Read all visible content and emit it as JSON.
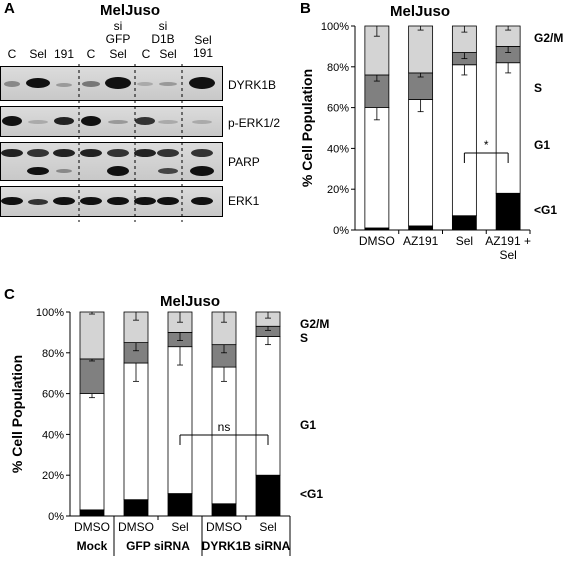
{
  "panels": {
    "A": {
      "letter": "A",
      "title": "MelJuso",
      "lane_labels": [
        "C",
        "Sel",
        "191",
        "C",
        "Sel",
        "C",
        "Sel"
      ],
      "group_labels": [
        {
          "line1": "si",
          "line2": "GFP"
        },
        {
          "line1": "si",
          "line2": "D1B"
        },
        {
          "line1": "Sel",
          "line2": "191"
        }
      ],
      "blot_labels": [
        "DYRK1B",
        "p-ERK1/2",
        "PARP",
        "ERK1"
      ]
    },
    "B": {
      "letter": "B"
    },
    "C": {
      "letter": "C"
    }
  },
  "chart_data": [
    {
      "type": "bar",
      "stacked": true,
      "title": "MelJuso",
      "ylabel": "% Cell Population",
      "ylim": [
        0,
        100
      ],
      "yticks": [
        "0%",
        "20%",
        "40%",
        "60%",
        "80%",
        "100%"
      ],
      "categories": [
        "DMSO",
        "AZ191",
        "Sel",
        "AZ191 + Sel"
      ],
      "series": [
        {
          "name": "<G1",
          "color": "#000000",
          "values": [
            1,
            2,
            7,
            18
          ],
          "errors": [
            0.5,
            1,
            4,
            7
          ]
        },
        {
          "name": "G1",
          "color": "#ffffff",
          "values": [
            59,
            62,
            74,
            64
          ],
          "errors": [
            6,
            6,
            5,
            5
          ]
        },
        {
          "name": "S",
          "color": "#808080",
          "values": [
            16,
            13,
            6,
            8
          ],
          "errors": [
            3,
            2,
            3,
            3
          ]
        },
        {
          "name": "G2/M",
          "color": "#d4d4d4",
          "values": [
            24,
            23,
            13,
            10
          ],
          "errors": [
            5,
            2,
            3,
            2
          ]
        }
      ],
      "annotations": [
        {
          "text": "*",
          "from": 2,
          "to": 3
        }
      ]
    },
    {
      "type": "bar",
      "stacked": true,
      "title": "MelJuso",
      "ylabel": "% Cell Population",
      "ylim": [
        0,
        100
      ],
      "yticks": [
        "0%",
        "20%",
        "40%",
        "60%",
        "80%",
        "100%"
      ],
      "categories": [
        "DMSO",
        "DMSO",
        "Sel",
        "DMSO",
        "Sel"
      ],
      "groups": [
        {
          "label": "Mock",
          "span": [
            0,
            0
          ]
        },
        {
          "label": "GFP siRNA",
          "span": [
            1,
            2
          ]
        },
        {
          "label": "DYRK1B siRNA",
          "span": [
            3,
            4
          ]
        }
      ],
      "series": [
        {
          "name": "<G1",
          "color": "#000000",
          "values": [
            3,
            8,
            11,
            6,
            20
          ],
          "errors": [
            2,
            3,
            3,
            6,
            10
          ]
        },
        {
          "name": "G1",
          "color": "#ffffff",
          "values": [
            57,
            67,
            72,
            67,
            68
          ],
          "errors": [
            2,
            9,
            9,
            7,
            4
          ]
        },
        {
          "name": "S",
          "color": "#808080",
          "values": [
            17,
            10,
            7,
            11,
            5
          ],
          "errors": [
            1,
            4,
            4,
            4,
            2
          ]
        },
        {
          "name": "G2/M",
          "color": "#d4d4d4",
          "values": [
            23,
            15,
            10,
            16,
            7
          ],
          "errors": [
            1,
            4,
            5,
            5,
            3
          ]
        }
      ],
      "annotations": [
        {
          "text": "ns",
          "from": 2,
          "to": 4
        }
      ]
    }
  ]
}
